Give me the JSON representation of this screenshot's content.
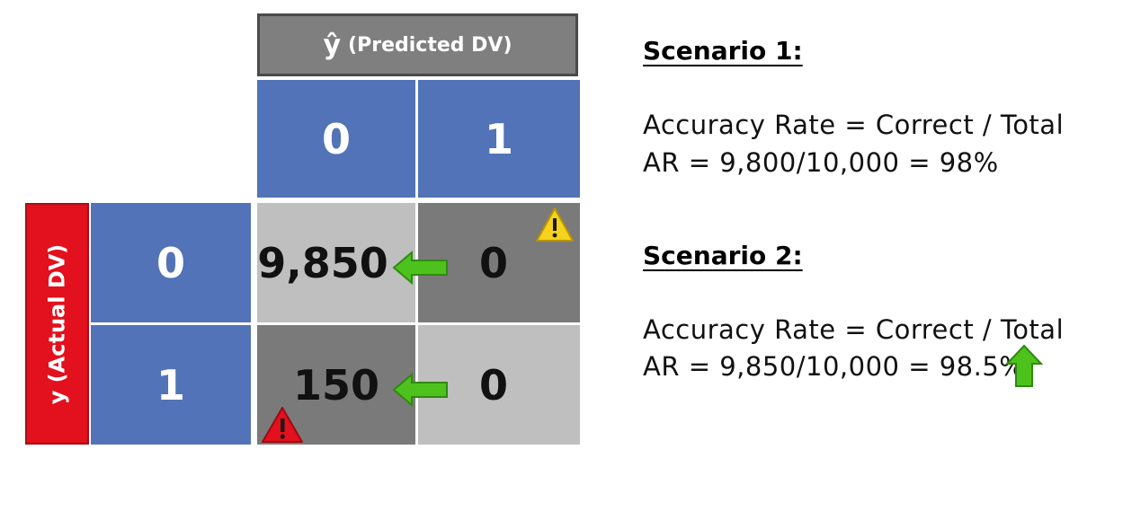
{
  "matrix": {
    "predicted_header": {
      "symbol": "ŷ",
      "label": "(Predicted DV)"
    },
    "actual_header": {
      "label": "y (Actual DV)"
    },
    "column_labels": [
      "0",
      "1"
    ],
    "row_labels": [
      "0",
      "1"
    ],
    "cells": [
      [
        "9,850",
        "0"
      ],
      [
        "150",
        "0"
      ]
    ],
    "colors": {
      "header_blue": "#5273b7",
      "actual_red": "#e3101d",
      "predicted_gray": "#7f7f7f",
      "correct_cell": "#bfbfbf",
      "error_cell": "#7a7a7a",
      "arrow_green": "#4dc21c"
    },
    "icons": [
      "warning-yellow-icon",
      "warning-red-icon",
      "left-arrow-icon",
      "up-arrow-icon"
    ]
  },
  "scenario1": {
    "title": "Scenario 1:",
    "formula": "Accuracy Rate = Correct / Total",
    "result": "AR = 9,800/10,000 = 98%"
  },
  "scenario2": {
    "title": "Scenario 2:",
    "formula": "Accuracy Rate = Correct / Total",
    "result": "AR = 9,850/10,000 = 98.5%"
  }
}
